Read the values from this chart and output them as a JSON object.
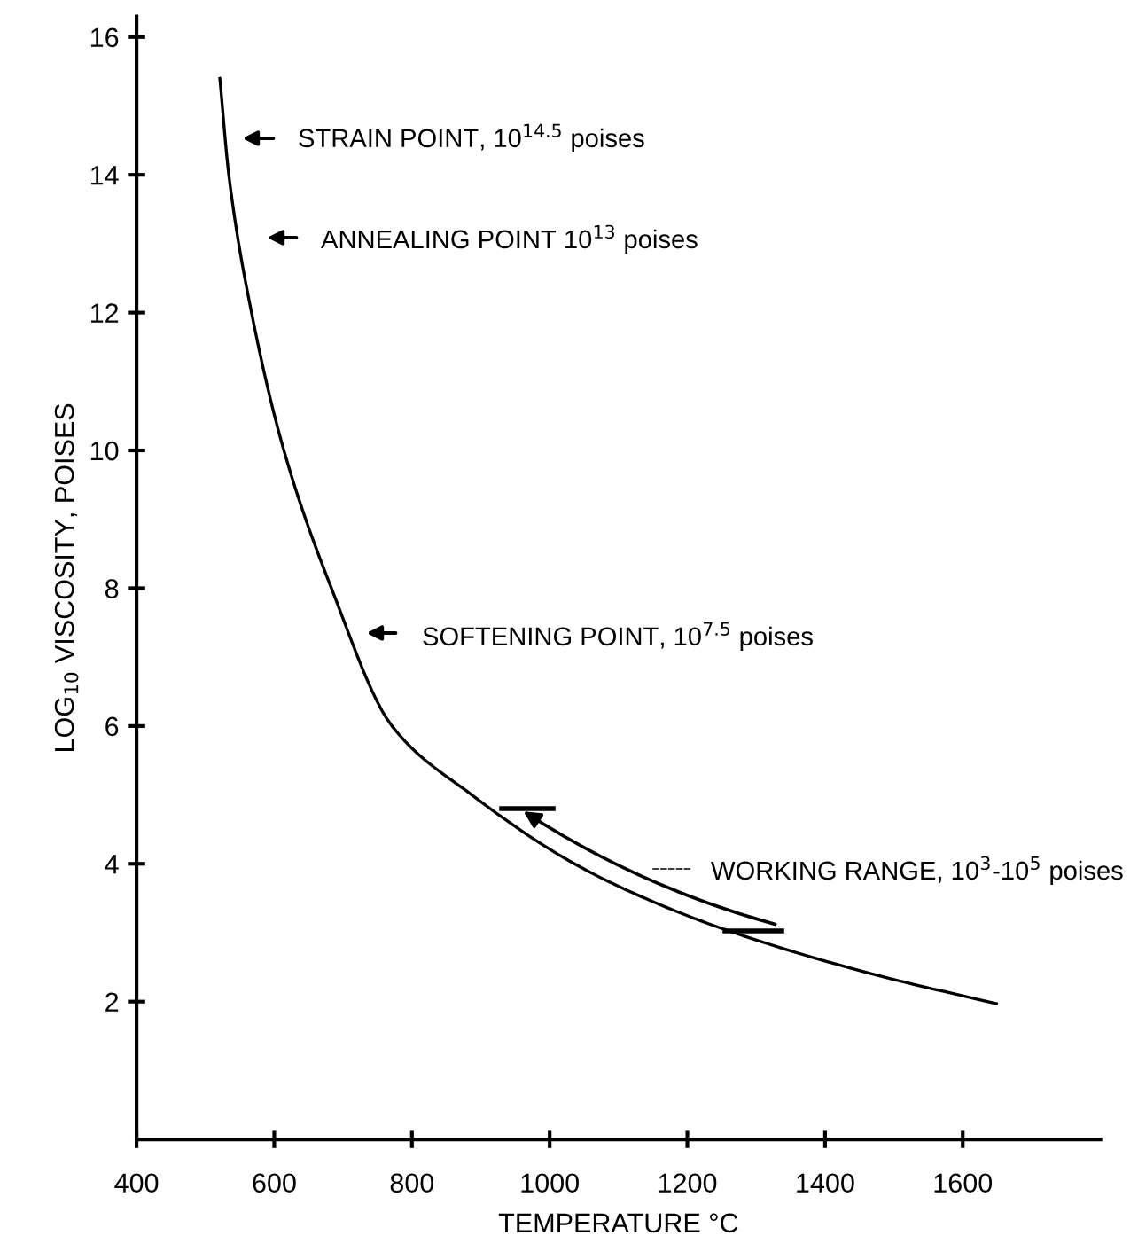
{
  "chart_data": {
    "type": "line",
    "xlabel": "TEMPERATURE °C",
    "ylabel": "LOG$_{10}$ VISCOSITY, POISES",
    "xlim": [
      400,
      1800
    ],
    "ylim": [
      0,
      16.3
    ],
    "xticks": [
      400,
      600,
      800,
      1000,
      1200,
      1400,
      1600
    ],
    "yticks": [
      2,
      4,
      6,
      8,
      10,
      12,
      14,
      16
    ],
    "grid": false,
    "legend": false,
    "marker": "none",
    "line_style": "solid",
    "series": [
      {
        "color": "#000000",
        "x": [
          521,
          534,
          567,
          614,
          683,
          771,
          887,
          1036,
          1150,
          1268,
          1469,
          1649
        ],
        "values": [
          15.4,
          14.0,
          12.0,
          10.0,
          8.0,
          6.0,
          5.0,
          4.0,
          3.45,
          3.0,
          2.4,
          1.97
        ]
      }
    ],
    "annotations": [
      "STRAIN POINT, 10$^{14.5}$ poises",
      "ANNEALING POINT 10$^{13}$ poises",
      "SOFTENING POINT, 10$^{7.5}$ poises",
      "WORKING RANGE, 10$^{3}$-10$^{5}$ poises"
    ]
  }
}
